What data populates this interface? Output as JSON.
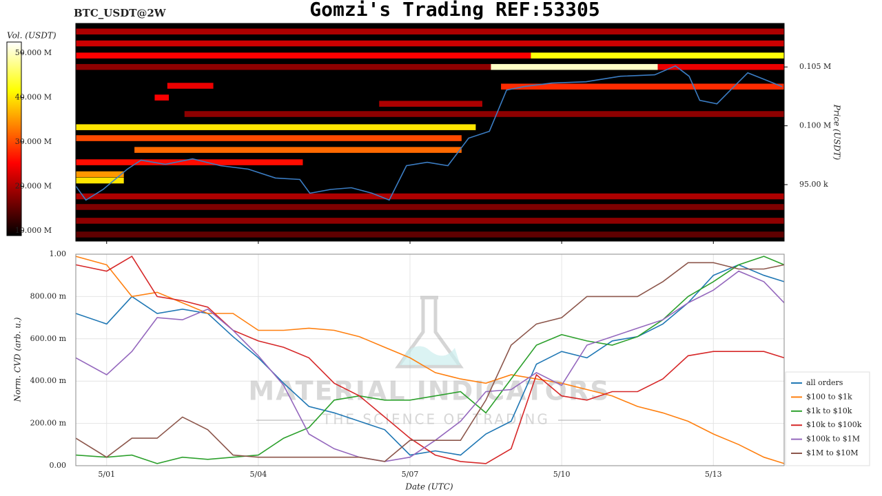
{
  "title": "Gomzi's Trading REF:53305",
  "chart_data": [
    {
      "type": "heatmap",
      "label": "BTC_USDT@2W",
      "colorbar_label": "Vol. (USDT)",
      "ylabel": "Price (USDT)",
      "clim": [
        8.9,
        52.5
      ],
      "cticks": [
        {
          "value": 50,
          "label": "50.000 M"
        },
        {
          "value": 40,
          "label": "40.000 M"
        },
        {
          "value": 30,
          "label": "30.000 M"
        },
        {
          "value": 20,
          "label": "20.000 M"
        },
        {
          "value": 10,
          "label": "10.000 M"
        }
      ],
      "ylim": [
        90200,
        108700
      ],
      "yticks": [
        {
          "value": 105000,
          "label": "0.105 M"
        },
        {
          "value": 100000,
          "label": "0.100 M"
        },
        {
          "value": 95000,
          "label": "95.00 k"
        }
      ],
      "xlim": [
        -0.61,
        13.4
      ],
      "bands": [
        {
          "price": 108010,
          "start": -0.61,
          "end": 13.4,
          "volume": 20
        },
        {
          "price": 107000,
          "start": -0.61,
          "end": 13.4,
          "volume": 22
        },
        {
          "price": 105970,
          "start": -0.61,
          "end": 8.39,
          "volume": 25
        },
        {
          "price": 105970,
          "start": 8.39,
          "end": 13.4,
          "volume": 42
        },
        {
          "price": 105000,
          "start": -0.61,
          "end": 7.6,
          "volume": 18
        },
        {
          "price": 105000,
          "start": 7.6,
          "end": 10.9,
          "volume": 50
        },
        {
          "price": 105000,
          "start": 10.9,
          "end": 13.4,
          "volume": 24
        },
        {
          "price": 103400,
          "start": 1.2,
          "end": 2.11,
          "volume": 24
        },
        {
          "price": 103330,
          "start": 7.8,
          "end": 13.4,
          "volume": 28
        },
        {
          "price": 102400,
          "start": 0.95,
          "end": 1.23,
          "volume": 25
        },
        {
          "price": 101870,
          "start": 5.39,
          "end": 7.43,
          "volume": 20
        },
        {
          "price": 101000,
          "start": 1.54,
          "end": 13.4,
          "volume": 18
        },
        {
          "price": 99880,
          "start": -0.61,
          "end": 7.3,
          "volume": 40
        },
        {
          "price": 98950,
          "start": -0.61,
          "end": 7.02,
          "volume": 30
        },
        {
          "price": 97950,
          "start": 0.55,
          "end": 7.02,
          "volume": 32
        },
        {
          "price": 96900,
          "start": -0.61,
          "end": 3.88,
          "volume": 26
        },
        {
          "price": 95880,
          "start": -0.61,
          "end": 0.34,
          "volume": 35
        },
        {
          "price": 95350,
          "start": -0.61,
          "end": 0.34,
          "volume": 40
        },
        {
          "price": 94000,
          "start": -0.61,
          "end": 13.4,
          "volume": 20
        },
        {
          "price": 93100,
          "start": -0.61,
          "end": 13.4,
          "volume": 17
        },
        {
          "price": 91930,
          "start": -0.61,
          "end": 13.4,
          "volume": 18
        },
        {
          "price": 90760,
          "start": -0.61,
          "end": 13.4,
          "volume": 15
        }
      ],
      "price_line": {
        "color": "#3b7dc4",
        "x": [
          -0.61,
          -0.41,
          -0.07,
          0.41,
          0.68,
          1.16,
          1.7,
          2.25,
          2.8,
          3.34,
          3.82,
          4.02,
          4.43,
          4.84,
          5.25,
          5.59,
          5.93,
          6.34,
          6.75,
          7.16,
          7.57,
          7.91,
          8.25,
          8.8,
          9.48,
          10.16,
          10.84,
          11.25,
          11.52,
          11.73,
          12.07,
          12.34,
          12.68,
          13.02,
          13.36
        ],
        "values": [
          94880,
          93690,
          94590,
          96320,
          97080,
          96730,
          97190,
          96610,
          96320,
          95560,
          95440,
          94270,
          94590,
          94740,
          94270,
          93690,
          96610,
          96900,
          96610,
          98950,
          99530,
          103040,
          103330,
          103630,
          103740,
          104210,
          104330,
          105090,
          104210,
          102160,
          101870,
          103040,
          104500,
          103920,
          103330
        ]
      }
    },
    {
      "type": "line",
      "ylabel": "Norm. CVD (arb. u.)",
      "xlabel": "Date (UTC)",
      "watermark": "MATERIAL INDICATORS",
      "watermark_sub": "THE SCIENCE OF TRADING",
      "xlim": [
        -0.61,
        13.4
      ],
      "xticks": [
        {
          "value": 0,
          "label": "5/01"
        },
        {
          "value": 3,
          "label": "5/04"
        },
        {
          "value": 6,
          "label": "5/07"
        },
        {
          "value": 9,
          "label": "5/10"
        },
        {
          "value": 12,
          "label": "5/13"
        }
      ],
      "ylim": [
        0,
        1
      ],
      "yticks": [
        {
          "value": 0,
          "label": "0.00"
        },
        {
          "value": 0.2,
          "label": "200.00 m"
        },
        {
          "value": 0.4,
          "label": "400.00 m"
        },
        {
          "value": 0.6,
          "label": "600.00 m"
        },
        {
          "value": 0.8,
          "label": "800.00 m"
        },
        {
          "value": 1,
          "label": "1.00"
        }
      ],
      "grid": true,
      "x": [
        -0.61,
        0,
        0.5,
        1,
        1.5,
        2,
        2.5,
        3,
        3.5,
        4,
        4.5,
        5,
        5.5,
        6,
        6.5,
        7,
        7.5,
        8,
        8.5,
        9,
        9.5,
        10,
        10.5,
        11,
        11.5,
        12,
        12.5,
        13,
        13.4
      ],
      "series": [
        {
          "name": "all orders",
          "color": "#1f77b4",
          "values": [
            0.72,
            0.67,
            0.8,
            0.72,
            0.74,
            0.72,
            0.61,
            0.51,
            0.39,
            0.28,
            0.25,
            0.21,
            0.17,
            0.05,
            0.07,
            0.05,
            0.15,
            0.21,
            0.48,
            0.54,
            0.51,
            0.59,
            0.61,
            0.67,
            0.77,
            0.9,
            0.95,
            0.9,
            0.87
          ]
        },
        {
          "name": "$100 to $1k",
          "color": "#ff7f0e",
          "values": [
            0.99,
            0.95,
            0.8,
            0.82,
            0.77,
            0.72,
            0.72,
            0.64,
            0.64,
            0.65,
            0.64,
            0.61,
            0.56,
            0.51,
            0.44,
            0.41,
            0.39,
            0.43,
            0.41,
            0.39,
            0.36,
            0.33,
            0.28,
            0.25,
            0.21,
            0.15,
            0.1,
            0.04,
            0.01
          ]
        },
        {
          "name": "$1k to $10k",
          "color": "#2ca02c",
          "values": [
            0.05,
            0.04,
            0.05,
            0.01,
            0.04,
            0.03,
            0.04,
            0.05,
            0.13,
            0.18,
            0.31,
            0.33,
            0.31,
            0.31,
            0.33,
            0.35,
            0.25,
            0.41,
            0.57,
            0.62,
            0.59,
            0.57,
            0.61,
            0.69,
            0.8,
            0.87,
            0.95,
            0.99,
            0.95
          ]
        },
        {
          "name": "$10k to $100k",
          "color": "#d62728",
          "values": [
            0.95,
            0.92,
            0.99,
            0.8,
            0.78,
            0.75,
            0.64,
            0.59,
            0.56,
            0.51,
            0.39,
            0.33,
            0.23,
            0.13,
            0.05,
            0.02,
            0.01,
            0.08,
            0.43,
            0.33,
            0.31,
            0.35,
            0.35,
            0.41,
            0.52,
            0.54,
            0.54,
            0.54,
            0.51
          ]
        },
        {
          "name": "$100k to $1M",
          "color": "#9467bd",
          "values": [
            0.51,
            0.43,
            0.54,
            0.7,
            0.69,
            0.74,
            0.64,
            0.52,
            0.38,
            0.15,
            0.08,
            0.04,
            0.02,
            0.04,
            0.12,
            0.21,
            0.35,
            0.36,
            0.44,
            0.38,
            0.57,
            0.61,
            0.65,
            0.69,
            0.77,
            0.83,
            0.92,
            0.87,
            0.77
          ]
        },
        {
          "name": "$1M to $10M",
          "color": "#8c564b",
          "values": [
            0.13,
            0.04,
            0.13,
            0.13,
            0.23,
            0.17,
            0.05,
            0.04,
            0.04,
            0.04,
            0.04,
            0.04,
            0.02,
            0.12,
            0.12,
            0.12,
            0.31,
            0.57,
            0.67,
            0.7,
            0.8,
            0.8,
            0.8,
            0.87,
            0.96,
            0.96,
            0.93,
            0.93,
            0.95
          ]
        }
      ]
    }
  ]
}
